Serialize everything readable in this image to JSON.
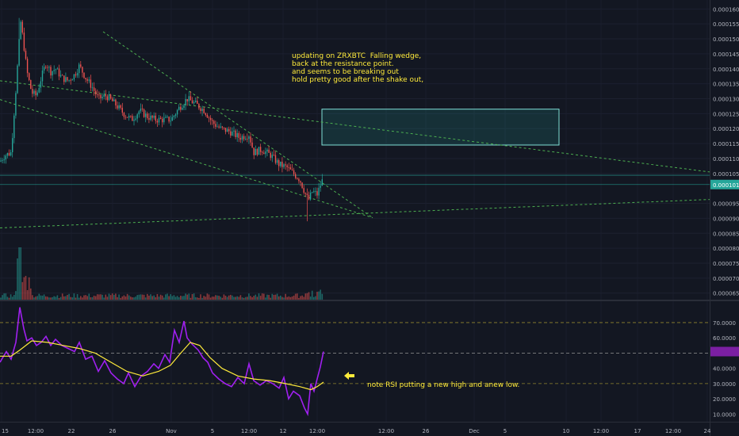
{
  "chart_data": {
    "type": "candlestick",
    "symbol": "ZRXBTC",
    "price_axis": {
      "ticks": [
        "0.00016000",
        "0.00015500",
        "0.00015000",
        "0.00014500",
        "0.00014000",
        "0.00013500",
        "0.00013000",
        "0.00012500",
        "0.00012000",
        "0.00011500",
        "0.00011000",
        "0.00010500",
        "0.00009500",
        "0.00009000",
        "0.00008500",
        "0.00008000",
        "0.00007500",
        "0.00007000",
        "0.00006500"
      ],
      "range": [
        6.28e-05,
        0.000163
      ],
      "last_price_label": "0.00010130"
    },
    "rsi_axis": {
      "ticks": [
        "70.0000",
        "60.0000",
        "50.0000",
        "40.0000",
        "30.0000",
        "20.0000",
        "10.0000"
      ],
      "range": [
        5,
        84
      ],
      "levels": [
        70,
        50,
        30
      ]
    },
    "time_axis": {
      "labels": [
        "15",
        "12:00",
        "22",
        "26",
        "Nov",
        "5",
        "12:00",
        "12",
        "12:00",
        "12:00",
        "26",
        "Dec",
        "5",
        "10",
        "12:00",
        "17",
        "12:00",
        "24"
      ]
    },
    "annotations": {
      "wedge_note": "updating on ZRXBTC  Falling wedge,\nback at the resistance point.\nand seems to be breaking out\nhold pretty good after the shake out,",
      "rsi_note": "note RSI putting a new high and anew low.",
      "rsi_arrow_icon": "arrow-left-icon",
      "resistance_zone": [
        0.0001145,
        0.0001265
      ]
    },
    "colors": {
      "background": "#131722",
      "up": "#26a69a",
      "down": "#ef5350",
      "trendline": "#4caf50",
      "rsi": "#a020f0",
      "rsi_ma": "#ffeb3b",
      "annotation_text": "#ffeb3b"
    }
  }
}
